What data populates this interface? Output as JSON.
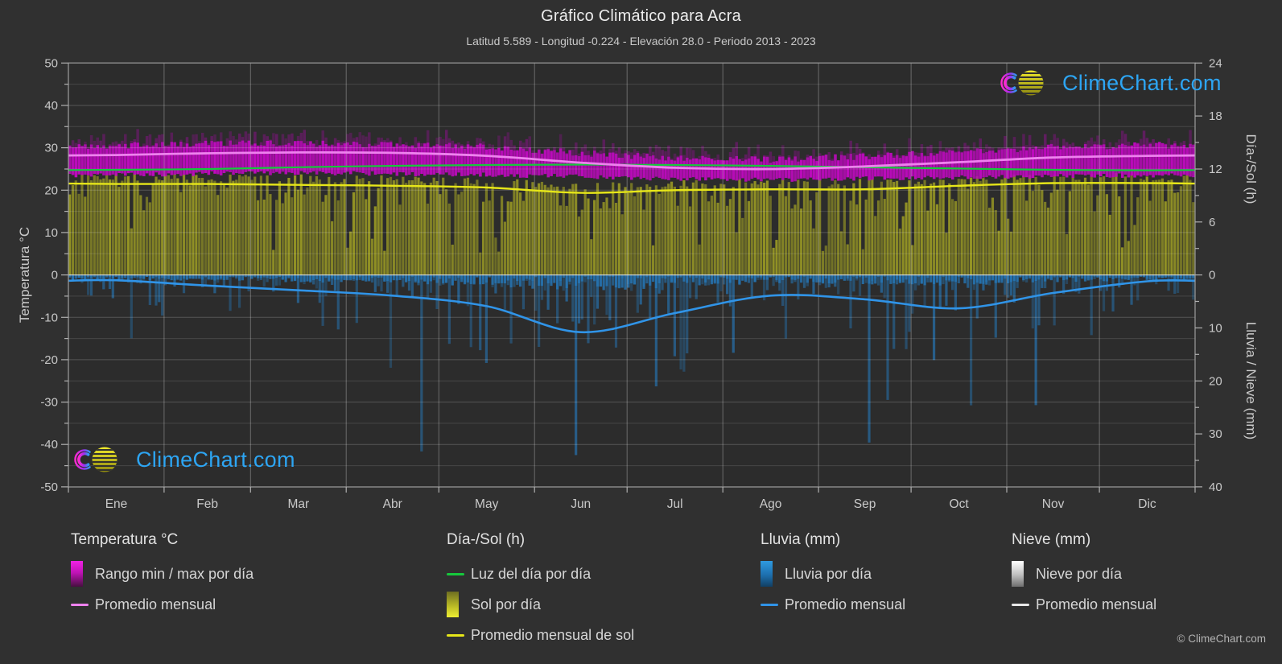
{
  "header": {
    "title": "Gráfico Climático para Acra",
    "subtitle": "Latitud 5.589 - Longitud -0.224 - Elevación 28.0 - Periodo 2013 - 2023"
  },
  "watermark": {
    "text": "ClimeChart.com"
  },
  "footer": {
    "copyright": "© ClimeChart.com"
  },
  "axes": {
    "temp": {
      "title": "Temperatura °C",
      "ticks": [
        50,
        40,
        30,
        20,
        10,
        0,
        -10,
        -20,
        -30,
        -40,
        -50
      ],
      "minor_step": 5,
      "range": [
        -50,
        50
      ]
    },
    "sun": {
      "title": "Día-/Sol (h)",
      "ticks": [
        24,
        18,
        12,
        6,
        0
      ],
      "minor_step": 3,
      "range": [
        0,
        24
      ]
    },
    "precip": {
      "title": "Lluvia / Nieve (mm)",
      "ticks": [
        10,
        20,
        30,
        40
      ],
      "minor_step": 5,
      "range": [
        0,
        40
      ],
      "direction": "down"
    }
  },
  "legend": {
    "groups": [
      {
        "title": "Temperatura °C",
        "items": [
          {
            "swatch": "gradient",
            "color_class": "magenta",
            "label": "Rango min / max por día"
          },
          {
            "swatch": "line",
            "color": "#ee82ee",
            "label": "Promedio mensual"
          }
        ]
      },
      {
        "title": "Día-/Sol (h)",
        "items": [
          {
            "swatch": "line",
            "color": "#16c83c",
            "label": "Luz del día por día"
          },
          {
            "swatch": "gradient",
            "color_class": "sun",
            "label": "Sol por día"
          },
          {
            "swatch": "line",
            "color": "#e6e619",
            "label": "Promedio mensual de sol"
          }
        ]
      },
      {
        "title": "Lluvia (mm)",
        "items": [
          {
            "swatch": "gradient",
            "color_class": "rain",
            "label": "Lluvia por día"
          },
          {
            "swatch": "line",
            "color": "#3094e8",
            "label": "Promedio mensual"
          }
        ]
      },
      {
        "title": "Nieve (mm)",
        "items": [
          {
            "swatch": "gradient",
            "color_class": "snow",
            "label": "Nieve por día"
          },
          {
            "swatch": "line",
            "color": "#e8e8e8",
            "label": "Promedio mensual"
          }
        ]
      }
    ]
  },
  "colors": {
    "background": "#303030",
    "logo_text": "#2da5f3",
    "temp_range_fill": "#c00ac0",
    "temp_avg_line": "#ee82ee",
    "daylight_line": "#16c83c",
    "sun_fill": "#9e9e24",
    "sun_avg_line": "#e6e619",
    "rain_fill": "#2677b7",
    "rain_avg_line": "#3094e8",
    "snow_fill": "#cccccc",
    "snow_avg_line": "#e8e8e8"
  },
  "chart_data": {
    "type": "climate-composite",
    "title": "Gráfico Climático para Acra",
    "location": "Acra",
    "latitude": 5.589,
    "longitude": -0.224,
    "elevation_m": 28.0,
    "period": "2013 - 2023",
    "months": [
      "Ene",
      "Feb",
      "Mar",
      "Abr",
      "May",
      "Jun",
      "Jul",
      "Ago",
      "Sep",
      "Oct",
      "Nov",
      "Dic"
    ],
    "y_left": {
      "label": "Temperatura °C",
      "min": -50,
      "max": 50
    },
    "y_right_hours": {
      "label": "Día-/Sol (h)",
      "min": 0,
      "max": 24
    },
    "y_right_mm": {
      "label": "Lluvia / Nieve (mm)",
      "min": 0,
      "max": 40,
      "direction": "down"
    },
    "temp_daily_range": {
      "name": "Rango min / max por día",
      "unit": "°C",
      "type": "daily-range-bars",
      "monthly_avg_min": [
        23.6,
        23.9,
        24.0,
        23.9,
        23.6,
        23.2,
        22.7,
        22.4,
        22.7,
        23.0,
        23.3,
        23.5
      ],
      "monthly_avg_max": [
        30.5,
        31.0,
        31.0,
        30.8,
        30.2,
        28.8,
        27.6,
        27.2,
        28.0,
        29.0,
        30.2,
        30.6
      ]
    },
    "temp_monthly_avg": {
      "name": "Promedio mensual",
      "unit": "°C",
      "type": "line",
      "values": [
        28.3,
        28.7,
        28.9,
        28.8,
        28.1,
        26.5,
        25.3,
        25.0,
        25.6,
        26.6,
        27.7,
        28.1
      ]
    },
    "daylight": {
      "name": "Luz del día por día",
      "unit": "h",
      "type": "line",
      "values": [
        11.9,
        12.0,
        12.2,
        12.35,
        12.45,
        12.5,
        12.45,
        12.35,
        12.2,
        12.05,
        11.9,
        11.85
      ]
    },
    "sun_daily": {
      "name": "Sol por día",
      "unit": "h",
      "type": "daily-bars",
      "monthly_avg": [
        10.3,
        10.3,
        10.2,
        10.1,
        9.9,
        9.3,
        9.6,
        9.7,
        9.7,
        10.1,
        10.4,
        10.4
      ]
    },
    "sun_monthly_avg": {
      "name": "Promedio mensual de sol",
      "unit": "h",
      "type": "line",
      "values": [
        10.3,
        10.3,
        10.2,
        10.1,
        9.9,
        9.3,
        9.6,
        9.7,
        9.7,
        10.1,
        10.4,
        10.4
      ]
    },
    "rain_daily": {
      "name": "Lluvia por día",
      "unit": "mm",
      "type": "daily-bars-down",
      "monthly_avg": [
        1.0,
        2.0,
        2.9,
        3.9,
        5.9,
        10.8,
        7.2,
        3.9,
        4.6,
        6.3,
        3.4,
        1.2
      ]
    },
    "rain_monthly_avg": {
      "name": "Promedio mensual",
      "unit": "mm",
      "type": "line",
      "values": [
        1.0,
        2.0,
        2.9,
        3.9,
        5.9,
        10.8,
        7.2,
        3.9,
        4.6,
        6.3,
        3.4,
        1.2
      ]
    },
    "snow_daily": {
      "name": "Nieve por día",
      "unit": "mm",
      "type": "daily-bars-down",
      "monthly_avg": [
        0,
        0,
        0,
        0,
        0,
        0,
        0,
        0,
        0,
        0,
        0,
        0
      ]
    },
    "snow_monthly_avg": {
      "name": "Promedio mensual",
      "unit": "mm",
      "type": "line",
      "values": [
        0,
        0,
        0,
        0,
        0,
        0,
        0,
        0,
        0,
        0,
        0,
        0
      ]
    }
  }
}
